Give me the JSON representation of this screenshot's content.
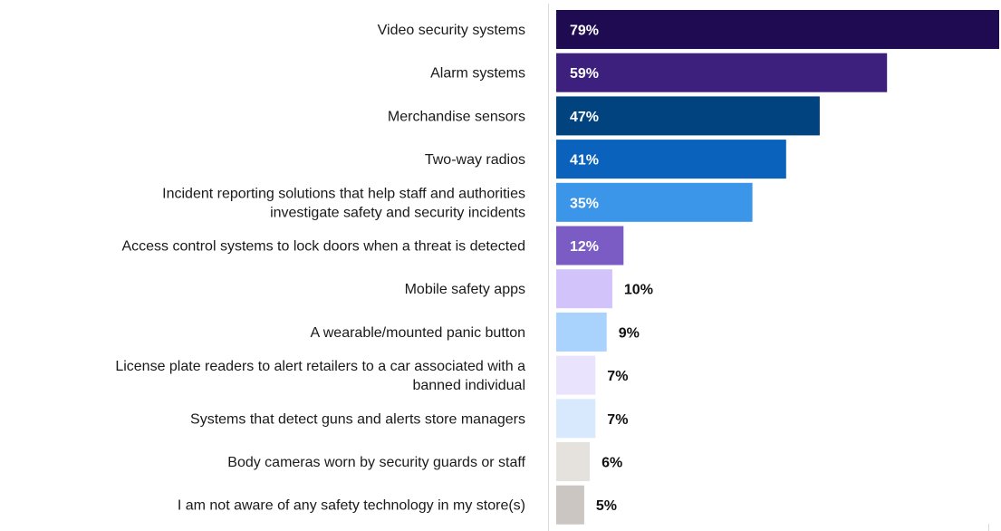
{
  "chart_data": {
    "type": "bar",
    "orientation": "horizontal",
    "title": "",
    "xlabel": "",
    "ylabel": "",
    "xlim": [
      0,
      79
    ],
    "grid": false,
    "categories": [
      "Video security systems",
      "Alarm systems",
      "Merchandise sensors",
      "Two-way radios",
      "Incident reporting solutions that help staff and authorities investigate safety and security incidents",
      "Access control systems to lock doors when a  threat is detected",
      "Mobile safety apps",
      "A wearable/mounted panic button",
      "License plate readers to alert retailers to a car associated with a banned individual",
      "Systems that detect guns and alerts store managers",
      "Body cameras worn by security guards or staff",
      "I am not aware of any safety technology in my store(s)"
    ],
    "values": [
      79,
      59,
      47,
      41,
      35,
      12,
      10,
      9,
      7,
      7,
      6,
      5
    ],
    "value_labels": [
      "79%",
      "59%",
      "47%",
      "41%",
      "35%",
      "12%",
      "10%",
      "9%",
      "7%",
      "7%",
      "6%",
      "5%"
    ],
    "bar_colors": [
      "#1e0b52",
      "#3d1f7e",
      "#00437f",
      "#0b62bd",
      "#3b96ea",
      "#7b5cc5",
      "#d2c3fb",
      "#a9d2fd",
      "#e9e3fd",
      "#d9e9fd",
      "#e5e1dc",
      "#cbc6c1"
    ],
    "label_positions": [
      "inside",
      "inside",
      "inside",
      "inside",
      "inside",
      "inside",
      "outside",
      "outside",
      "outside",
      "outside",
      "outside",
      "outside"
    ]
  }
}
